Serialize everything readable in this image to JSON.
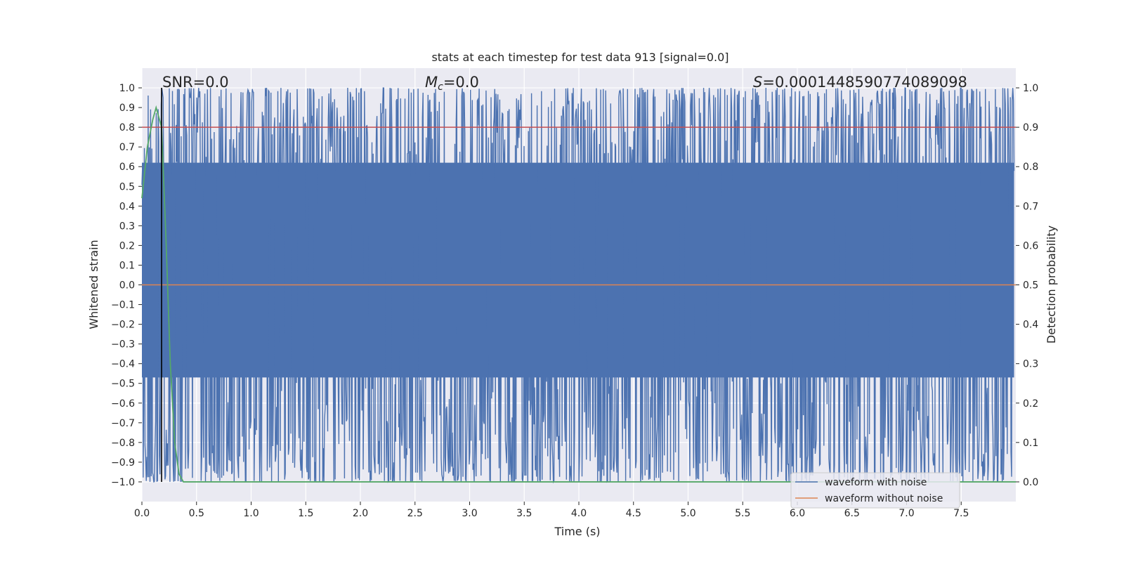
{
  "chart_data": {
    "type": "line",
    "title": "stats at each timestep for test data 913 [signal=0.0]",
    "xlabel": "Time (s)",
    "ylabel_left": "Whitened strain",
    "ylabel_right": "Detection probability",
    "xlim": [
      0.0,
      8.0
    ],
    "ylim_left": [
      -1.1,
      1.1
    ],
    "ylim_right": [
      -0.05,
      1.05
    ],
    "x_ticks": [
      0.0,
      0.5,
      1.0,
      1.5,
      2.0,
      2.5,
      3.0,
      3.5,
      4.0,
      4.5,
      5.0,
      5.5,
      6.0,
      6.5,
      7.0,
      7.5
    ],
    "x_tick_labels": [
      "0.0",
      "0.5",
      "1.0",
      "1.5",
      "2.0",
      "2.5",
      "3.0",
      "3.5",
      "4.0",
      "4.5",
      "5.0",
      "5.5",
      "6.0",
      "6.5",
      "7.0",
      "7.5"
    ],
    "y_left_ticks": [
      1.0,
      0.9,
      0.8,
      0.7,
      0.6,
      0.5,
      0.4,
      0.3,
      0.2,
      0.1,
      0.0,
      -0.1,
      -0.2,
      -0.3,
      -0.4,
      -0.5,
      -0.6,
      -0.7,
      -0.8,
      -0.9,
      -1.0
    ],
    "y_left_tick_labels": [
      "1.0",
      "0.9",
      "0.8",
      "0.7",
      "0.6",
      "0.5",
      "0.4",
      "0.3",
      "0.2",
      "0.1",
      "0.0",
      "−0.1",
      "−0.2",
      "−0.3",
      "−0.4",
      "−0.5",
      "−0.6",
      "−0.7",
      "−0.8",
      "−0.9",
      "−1.0"
    ],
    "y_right_ticks": [
      1.0,
      0.9,
      0.8,
      0.7,
      0.6,
      0.5,
      0.4,
      0.3,
      0.2,
      0.1,
      0.0
    ],
    "y_right_tick_labels": [
      "1.0",
      "0.9",
      "0.8",
      "0.7",
      "0.6",
      "0.5",
      "0.4",
      "0.3",
      "0.2",
      "0.1",
      "0.0"
    ],
    "grid": true,
    "legend_position": "bottom-right",
    "annotations": {
      "snr_text": "SNR=0.0",
      "mc_symbol": "M",
      "mc_subscript": "c",
      "mc_value": "=0.0",
      "s_symbol": "S",
      "s_value": "=0.0001448590774089098"
    },
    "vertical_marker_x": 0.18,
    "series": [
      {
        "name": "waveform with noise",
        "axis": "left",
        "color": "#4c72b0",
        "description_range": [
          -1.0,
          1.0
        ]
      },
      {
        "name": "waveform without noise",
        "axis": "left",
        "color": "#dd8452",
        "x": [
          0.0,
          8.0
        ],
        "y": [
          0.0,
          0.0
        ]
      },
      {
        "name": "",
        "axis": "right",
        "color": "#55a868",
        "x": [
          0.0,
          0.05,
          0.1,
          0.13,
          0.15,
          0.18,
          0.22,
          0.26,
          0.3,
          0.34,
          0.38,
          0.5,
          1.0,
          2.0,
          4.0,
          6.0,
          8.0
        ],
        "y": [
          0.72,
          0.85,
          0.92,
          0.95,
          0.93,
          0.9,
          0.62,
          0.3,
          0.1,
          0.02,
          0.0,
          0.0,
          0.0,
          0.0,
          0.0,
          0.0,
          0.0
        ]
      },
      {
        "name": "",
        "axis": "right",
        "color": "#c44e52",
        "x": [
          0.0,
          8.0
        ],
        "y": [
          0.9,
          0.9
        ]
      }
    ]
  }
}
